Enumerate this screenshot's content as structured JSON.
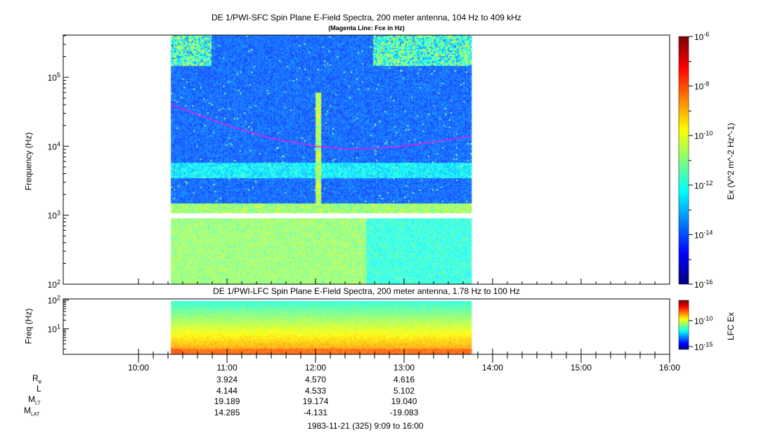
{
  "chart_data": [
    {
      "type": "heatmap",
      "title": "DE 1/PWI-SFC  Spin Plane E-Field Spectra, 200 meter antenna, 104 Hz to 409 kHz",
      "subtitle": "(Magenta Line: Fce in Hz)",
      "ylabel": "Frequency (Hz)",
      "y_scale": "log",
      "ylim": [
        100,
        409000
      ],
      "y_ticks": [
        "10^2",
        "10^3",
        "10^4",
        "10^5"
      ],
      "data_time_range": [
        "10:22",
        "13:45"
      ],
      "colorbar": {
        "label": "Ex (V^2 m^-2 Hz^-1)",
        "scale": "log",
        "range": [
          1e-16,
          1e-06
        ],
        "ticks": [
          "10^-16",
          "10^-14",
          "10^-12",
          "10^-10",
          "10^-8",
          "10^-6"
        ]
      },
      "fce_line": {
        "name": "Fce",
        "color": "#e020e0",
        "times": [
          "10:22",
          "11:00",
          "11:30",
          "12:00",
          "12:20",
          "12:40",
          "13:00",
          "13:20",
          "13:45"
        ],
        "values": [
          40000,
          20000,
          13000,
          10000,
          9200,
          9300,
          10000,
          11500,
          14000
        ]
      }
    },
    {
      "type": "heatmap",
      "title": "DE 1/PWI-LFC  Spin Plane E-Field Spectra, 200 meter antenna, 1.78 Hz to 100 Hz",
      "ylabel": "Freq (Hz)",
      "y_scale": "log",
      "ylim": [
        1.78,
        100
      ],
      "y_ticks": [
        "10^1",
        "10^2"
      ],
      "data_time_range": [
        "10:22",
        "13:45"
      ],
      "colorbar": {
        "label": "LFC Ex",
        "scale": "log",
        "ticks": [
          "10^-15",
          "10^-10"
        ]
      }
    }
  ],
  "x_axis": {
    "range": [
      "9:09",
      "16:00"
    ],
    "ticks": [
      "10:00",
      "11:00",
      "12:00",
      "13:00",
      "14:00",
      "15:00",
      "16:00"
    ]
  },
  "ephemeris": {
    "labels": {
      "re": "R",
      "re_sub": "e",
      "l": "L",
      "mlt": "M",
      "mlt_sub": "LT",
      "mlat": "M",
      "mlat_sub": "LAT"
    },
    "columns": [
      {
        "time": "11:00",
        "re": "3.924",
        "l": "4.144",
        "mlt": "19.189",
        "mlat": "14.285"
      },
      {
        "time": "12:00",
        "re": "4.570",
        "l": "4.533",
        "mlt": "19.174",
        "mlat": "-4.131"
      },
      {
        "time": "13:00",
        "re": "4.616",
        "l": "5.102",
        "mlt": "19.040",
        "mlat": "-19.083"
      }
    ]
  },
  "footer": "1983-11-21 (325) 9:09 to 16:00"
}
